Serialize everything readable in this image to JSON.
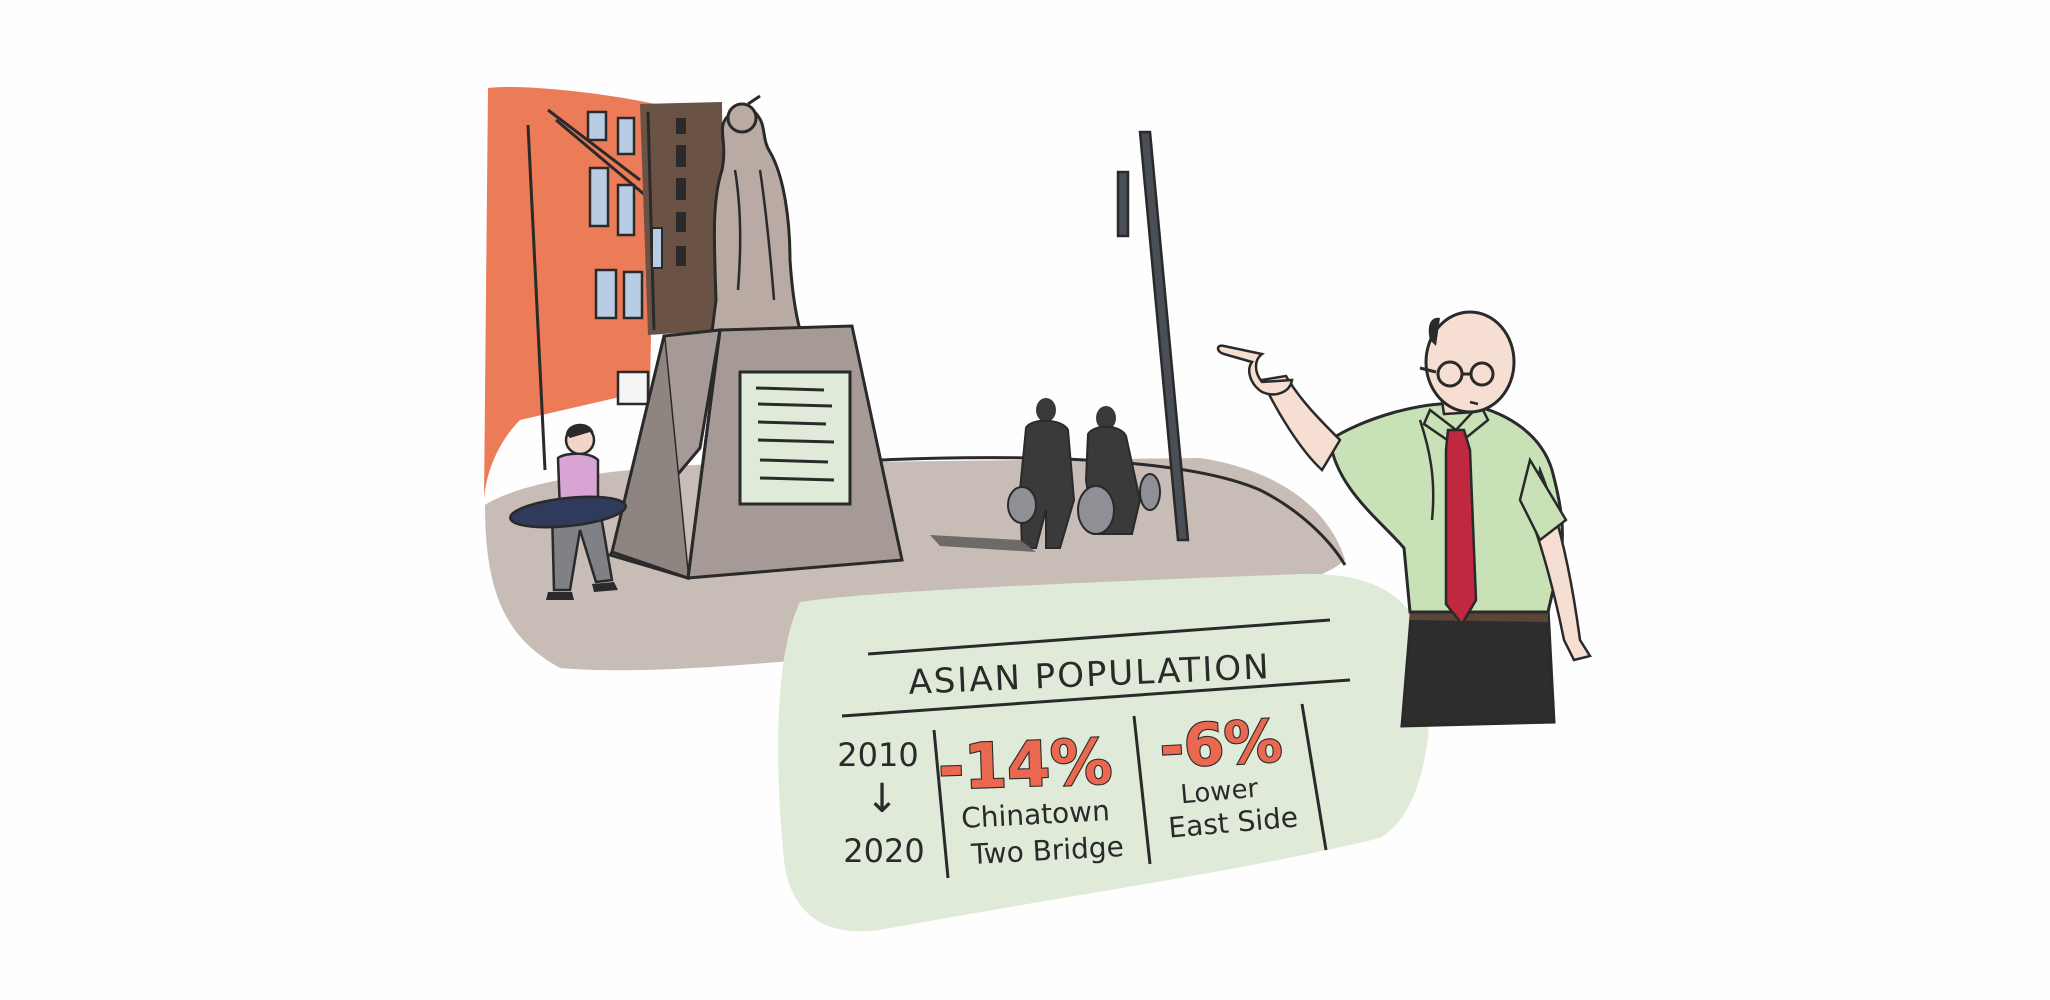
{
  "sign": {
    "title": "ASIAN POPULATION",
    "year_start": "2010",
    "arrow": "↓",
    "year_end": "2020",
    "stats": [
      {
        "change": "-14%",
        "area_line1": "Chinatown",
        "area_line2": "Two Bridge"
      },
      {
        "change": "-6%",
        "area_line1": "Lower",
        "area_line2": "East Side"
      }
    ]
  },
  "colors": {
    "building_orange": "#ec7b58",
    "building_brown": "#6a5245",
    "statue_gray": "#b9aaa4",
    "pedestal_gray": "#a69a96",
    "plaza_gray": "#c8bcb7",
    "sign_green": "#dfebd8",
    "shirt_green": "#c8e1b6",
    "tie_red": "#c0283f",
    "accent_red": "#e9684f",
    "ink": "#2a2a2a"
  },
  "icons": {
    "statue": "statue-figure-icon",
    "pedestrians": "pedestrian-silhouettes-icon",
    "man": "pointing-man-icon"
  }
}
